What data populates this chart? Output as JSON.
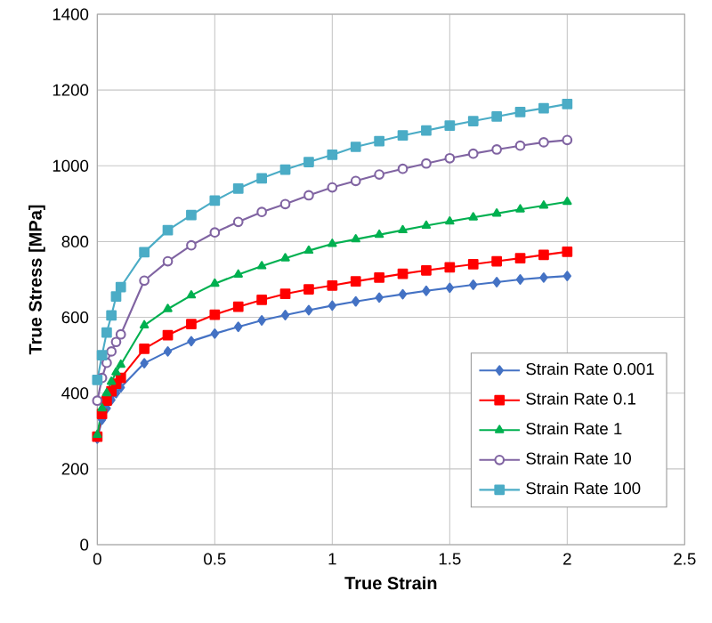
{
  "chart_data": {
    "type": "line",
    "xlabel": "True Strain",
    "ylabel": "True Stress [MPa]",
    "x": [
      0,
      0.02,
      0.04,
      0.06,
      0.08,
      0.1,
      0.2,
      0.3,
      0.4,
      0.5,
      0.6,
      0.7,
      0.8,
      0.9,
      1.0,
      1.1,
      1.2,
      1.3,
      1.4,
      1.5,
      1.6,
      1.7,
      1.8,
      1.9,
      2.0
    ],
    "series": [
      {
        "name": "Strain Rate 0.001",
        "color": "#4472c4",
        "marker": "diamond",
        "values": [
          280,
          330,
          360,
          382,
          400,
          415,
          479,
          510,
          537,
          557,
          575,
          592,
          606,
          619,
          631,
          642,
          652,
          661,
          670,
          678,
          686,
          693,
          700,
          705,
          709
        ]
      },
      {
        "name": "Strain Rate 0.1",
        "color": "#ff0000",
        "marker": "square",
        "values": [
          285,
          345,
          380,
          405,
          425,
          440,
          517,
          553,
          582,
          607,
          628,
          646,
          662,
          674,
          684,
          695,
          705,
          715,
          724,
          732,
          740,
          748,
          756,
          765,
          773
        ]
      },
      {
        "name": "Strain Rate 1",
        "color": "#00b050",
        "marker": "triangle",
        "values": [
          290,
          360,
          400,
          430,
          455,
          475,
          579,
          622,
          658,
          689,
          713,
          735,
          756,
          776,
          794,
          806,
          818,
          830,
          842,
          853,
          864,
          874,
          885,
          895,
          905
        ]
      },
      {
        "name": "Strain Rate 10",
        "color": "#8064a2",
        "marker": "circle",
        "values": [
          380,
          440,
          480,
          510,
          535,
          555,
          697,
          748,
          790,
          824,
          852,
          878,
          899,
          922,
          943,
          960,
          977,
          992,
          1006,
          1020,
          1032,
          1043,
          1053,
          1062,
          1068
        ]
      },
      {
        "name": "Strain Rate 100",
        "color": "#4bacc6",
        "marker": "square",
        "values": [
          435,
          500,
          560,
          605,
          655,
          680,
          772,
          830,
          870,
          908,
          940,
          967,
          990,
          1010,
          1029,
          1050,
          1065,
          1080,
          1093,
          1106,
          1118,
          1130,
          1142,
          1152,
          1163
        ]
      }
    ],
    "xlim": [
      0,
      2.5
    ],
    "xticks": [
      0,
      0.5,
      1,
      1.5,
      2,
      2.5
    ],
    "ylim": [
      0,
      1400
    ],
    "yticks": [
      0,
      200,
      400,
      600,
      800,
      1000,
      1200,
      1400
    ],
    "grid": true,
    "legend": "bottom right",
    "line_style": "solid"
  }
}
